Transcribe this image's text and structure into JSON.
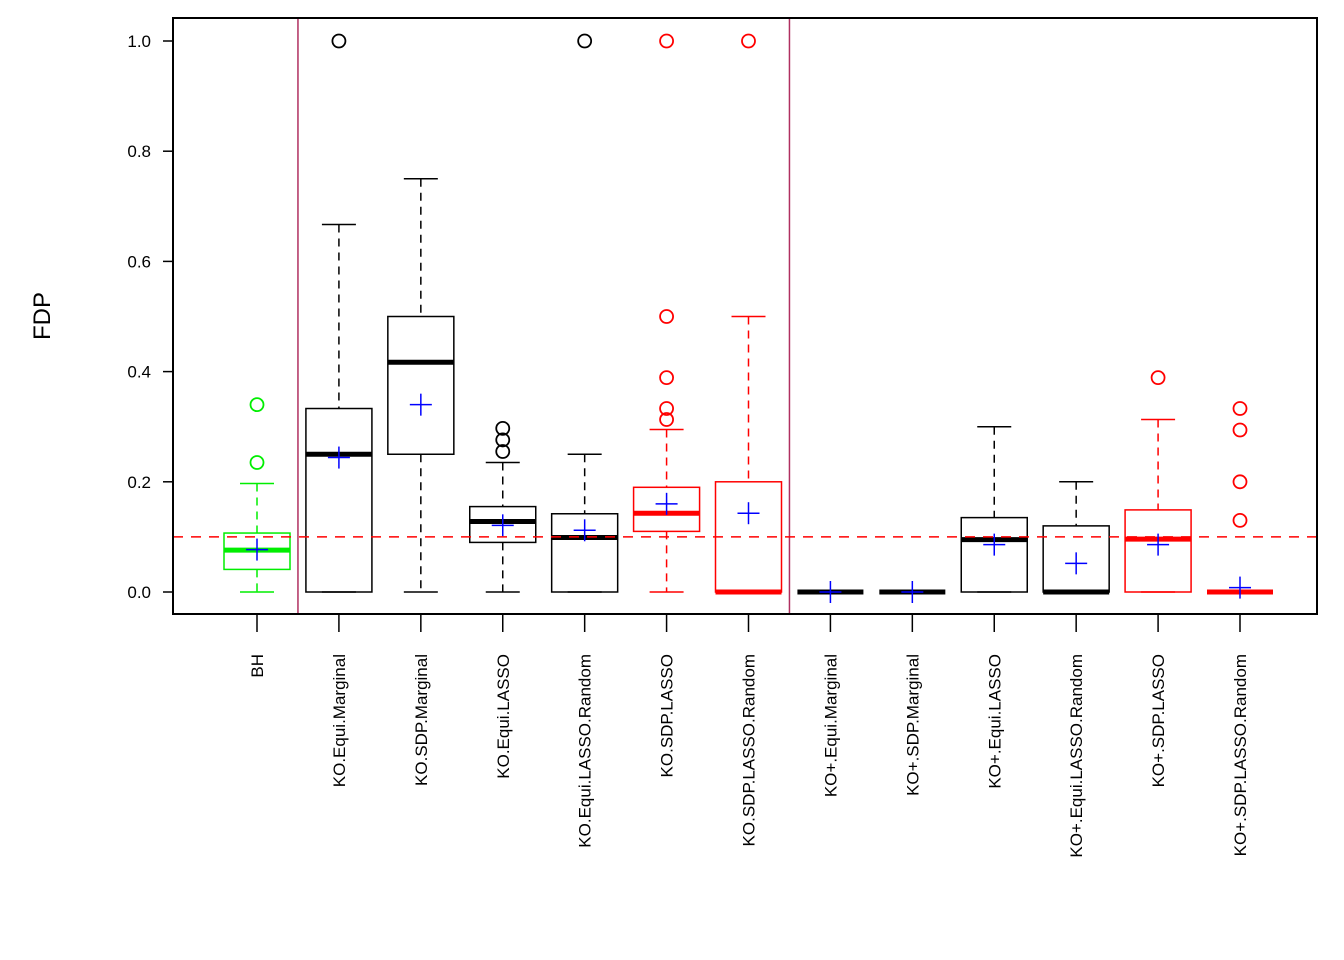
{
  "chart_data": {
    "type": "boxplot",
    "title": "",
    "xlabel": "",
    "ylabel": "FDP",
    "ylim": [
      -0.04,
      1.04
    ],
    "yticks": [
      0.0,
      0.2,
      0.4,
      0.6,
      0.8,
      1.0
    ],
    "ytick_labels": [
      "0.0",
      "0.2",
      "0.4",
      "0.6",
      "0.8",
      "1.0"
    ],
    "grid": false,
    "legend": "none",
    "reference_line": {
      "y": 0.1,
      "style": "dashed",
      "color": "#ff0000"
    },
    "group_separators_after": [
      "BH",
      "KO.SDP.LASSO.Random"
    ],
    "separator_color": "#b03060",
    "mean_marker": {
      "symbol": "+",
      "color": "#0000ff"
    },
    "series": [
      {
        "name": "BH",
        "color": "#00ee00",
        "whisker_low": 0.0,
        "q1": 0.041,
        "median": 0.076,
        "q3": 0.107,
        "whisker_high": 0.197,
        "mean": 0.077,
        "outliers": [
          0.235,
          0.34
        ]
      },
      {
        "name": "KO.Equi.Marginal",
        "color": "#000000",
        "whisker_low": 0.0,
        "q1": 0.0,
        "median": 0.25,
        "q3": 0.333,
        "whisker_high": 0.667,
        "mean": 0.244,
        "outliers": [
          1.0
        ]
      },
      {
        "name": "KO.SDP.Marginal",
        "color": "#000000",
        "whisker_low": 0.0,
        "q1": 0.25,
        "median": 0.417,
        "q3": 0.5,
        "whisker_high": 0.75,
        "mean": 0.34,
        "outliers": []
      },
      {
        "name": "KO.Equi.LASSO",
        "color": "#000000",
        "whisker_low": 0.0,
        "q1": 0.09,
        "median": 0.128,
        "q3": 0.155,
        "whisker_high": 0.235,
        "mean": 0.121,
        "outliers": [
          0.255,
          0.276,
          0.297
        ]
      },
      {
        "name": "KO.Equi.LASSO.Random",
        "color": "#000000",
        "whisker_low": 0.0,
        "q1": 0.0,
        "median": 0.099,
        "q3": 0.142,
        "whisker_high": 0.25,
        "mean": 0.112,
        "outliers": [
          1.0
        ]
      },
      {
        "name": "KO.SDP.LASSO",
        "color": "#ff0000",
        "whisker_low": 0.0,
        "q1": 0.11,
        "median": 0.143,
        "q3": 0.19,
        "whisker_high": 0.295,
        "mean": 0.16,
        "outliers": [
          0.313,
          0.333,
          0.389,
          0.5,
          1.0
        ]
      },
      {
        "name": "KO.SDP.LASSO.Random",
        "color": "#ff0000",
        "whisker_low": 0.0,
        "q1": 0.0,
        "median": 0.0,
        "q3": 0.2,
        "whisker_high": 0.5,
        "mean": 0.143,
        "outliers": [
          1.0
        ]
      },
      {
        "name": "KO+.Equi.Marginal",
        "color": "#000000",
        "whisker_low": 0.0,
        "q1": 0.0,
        "median": 0.0,
        "q3": 0.0,
        "whisker_high": 0.0,
        "mean": 0.0,
        "outliers": []
      },
      {
        "name": "KO+.SDP.Marginal",
        "color": "#000000",
        "whisker_low": 0.0,
        "q1": 0.0,
        "median": 0.0,
        "q3": 0.0,
        "whisker_high": 0.0,
        "mean": 0.0,
        "outliers": []
      },
      {
        "name": "KO+.Equi.LASSO",
        "color": "#000000",
        "whisker_low": 0.0,
        "q1": 0.0,
        "median": 0.095,
        "q3": 0.135,
        "whisker_high": 0.3,
        "mean": 0.086,
        "outliers": []
      },
      {
        "name": "KO+.Equi.LASSO.Random",
        "color": "#000000",
        "whisker_low": 0.0,
        "q1": 0.0,
        "median": 0.0,
        "q3": 0.12,
        "whisker_high": 0.2,
        "mean": 0.052,
        "outliers": []
      },
      {
        "name": "KO+.SDP.LASSO",
        "color": "#ff0000",
        "whisker_low": 0.0,
        "q1": 0.0,
        "median": 0.096,
        "q3": 0.149,
        "whisker_high": 0.313,
        "mean": 0.086,
        "outliers": [
          0.389
        ]
      },
      {
        "name": "KO+.SDP.LASSO.Random",
        "color": "#ff0000",
        "whisker_low": 0.0,
        "q1": 0.0,
        "median": 0.0,
        "q3": 0.0,
        "whisker_high": 0.0,
        "mean": 0.008,
        "outliers": [
          0.13,
          0.2,
          0.294,
          0.333
        ]
      }
    ]
  }
}
